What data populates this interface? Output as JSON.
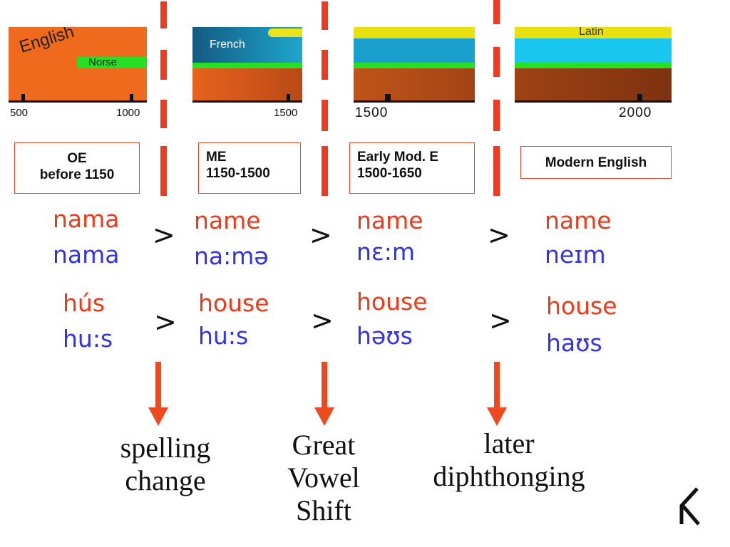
{
  "timeline": {
    "panel_oe": {
      "english_label": "English",
      "norse_label": "Norse",
      "tick_labels": [
        "500",
        "1000"
      ]
    },
    "panel_me": {
      "french_label": "French",
      "tick_labels": [
        "1500"
      ]
    },
    "panel_emode": {
      "tick_labels": [
        "1500"
      ]
    },
    "panel_mode": {
      "latin_label": "Latin",
      "tick_labels": [
        "2000"
      ]
    }
  },
  "periods": [
    {
      "line1": "OE",
      "line2": "before 1150"
    },
    {
      "line1": "ME",
      "line2": "1150-1500"
    },
    {
      "line1": "Early Mod. E",
      "line2": "1500-1650"
    },
    {
      "line1": "Modern English"
    }
  ],
  "rows": {
    "name": [
      {
        "spelling": "nama",
        "pron": "nama"
      },
      {
        "spelling": "name",
        "pron": "na:mə"
      },
      {
        "spelling": "name",
        "pron": "nɛ:m"
      },
      {
        "spelling": "name",
        "pron": "neɪm"
      }
    ],
    "house": [
      {
        "spelling": "hús",
        "pron": "hu:s"
      },
      {
        "spelling": "house",
        "pron": "hu:s"
      },
      {
        "spelling": "house",
        "pron": "həʊs"
      },
      {
        "spelling": "house",
        "pron": "haʊs"
      }
    ],
    "arrow_symbol": ">"
  },
  "changes": [
    {
      "line1": "spelling",
      "line2": "change"
    },
    {
      "line1": "Great",
      "line2": "Vowel",
      "line3": "Shift"
    },
    {
      "line1": "later",
      "line2": "diphthonging"
    }
  ],
  "colors": {
    "spelling": "#f0381a",
    "pronunciation": "#3232ee",
    "divider": "#ee3a20",
    "english_band": "#ee6a1c",
    "french_band": "#1a8fb8",
    "latin_band": "#e8e010",
    "norse_band": "#22dd22"
  },
  "icons": {
    "corner_logo": "rune-icon"
  }
}
